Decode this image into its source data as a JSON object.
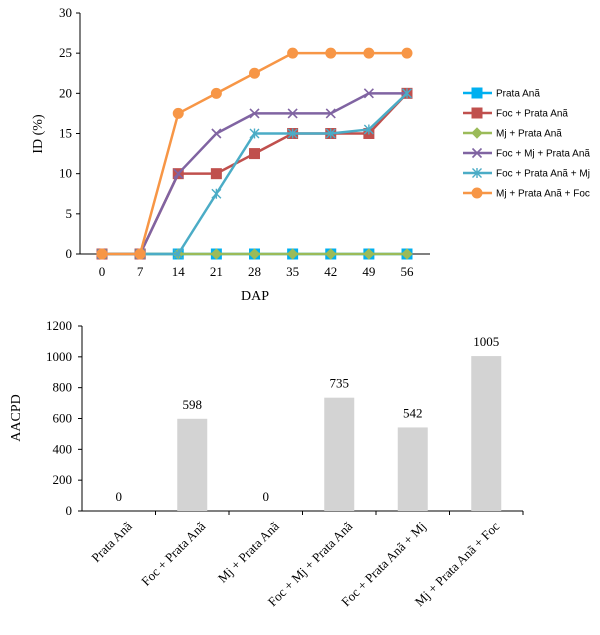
{
  "chart_data": [
    {
      "type": "line",
      "xlabel": "DAP",
      "ylabel": "ID (%)",
      "x": [
        0,
        7,
        14,
        21,
        28,
        35,
        42,
        49,
        56
      ],
      "x_tick_labels": [
        "0",
        "7",
        "14",
        "21",
        "28",
        "35",
        "42",
        "49",
        "56"
      ],
      "ylim": [
        0,
        30
      ],
      "y_ticks": [
        "0",
        "5",
        "10",
        "15",
        "20",
        "25",
        "30"
      ],
      "grid": false,
      "legend_position": "right",
      "series": [
        {
          "name": "Prata Anã",
          "color": "#00b0f0",
          "marker": "square",
          "values": [
            0,
            0,
            0,
            0,
            0,
            0,
            0,
            0,
            0
          ]
        },
        {
          "name": "Foc + Prata Anã",
          "color": "#c0504d",
          "marker": "square",
          "values": [
            0,
            0,
            10,
            10,
            12.5,
            15,
            15,
            15,
            20
          ]
        },
        {
          "name": "Mj + Prata Anã",
          "color": "#9bbb59",
          "marker": "diamond",
          "values": [
            0,
            0,
            0,
            0,
            0,
            0,
            0,
            0,
            0
          ]
        },
        {
          "name": "Foc + Mj + Prata Anã",
          "color": "#8064a2",
          "marker": "x",
          "values": [
            0,
            0,
            10,
            15,
            17.5,
            17.5,
            17.5,
            20,
            20
          ]
        },
        {
          "name": "Foc + Prata Anã + Mj",
          "color": "#4bacc6",
          "marker": "star",
          "values": [
            0,
            0,
            0,
            7.5,
            15,
            15,
            15,
            15.5,
            20
          ]
        },
        {
          "name": "Mj + Prata Anã + Foc",
          "color": "#f79646",
          "marker": "circle",
          "values": [
            0,
            0,
            17.5,
            20,
            22.5,
            25,
            25,
            25,
            25
          ]
        }
      ]
    },
    {
      "type": "bar",
      "ylabel": "AACPD",
      "categories": [
        "Prata Anã",
        "Foc + Prata Anã",
        "Mj + Prata Anã",
        "Foc + Mj + Prata Anã",
        "Foc + Prata Anã + Mj",
        "Mj + Prata Anã + Foc"
      ],
      "values": [
        0,
        598,
        0,
        735,
        542,
        1005
      ],
      "data_labels": [
        "0",
        "598",
        "0",
        "735",
        "542",
        "1005"
      ],
      "ylim": [
        0,
        1200
      ],
      "y_ticks": [
        "0",
        "200",
        "400",
        "600",
        "800",
        "1000",
        "1200"
      ],
      "bar_color": "#d3d3d3",
      "grid": false
    }
  ]
}
